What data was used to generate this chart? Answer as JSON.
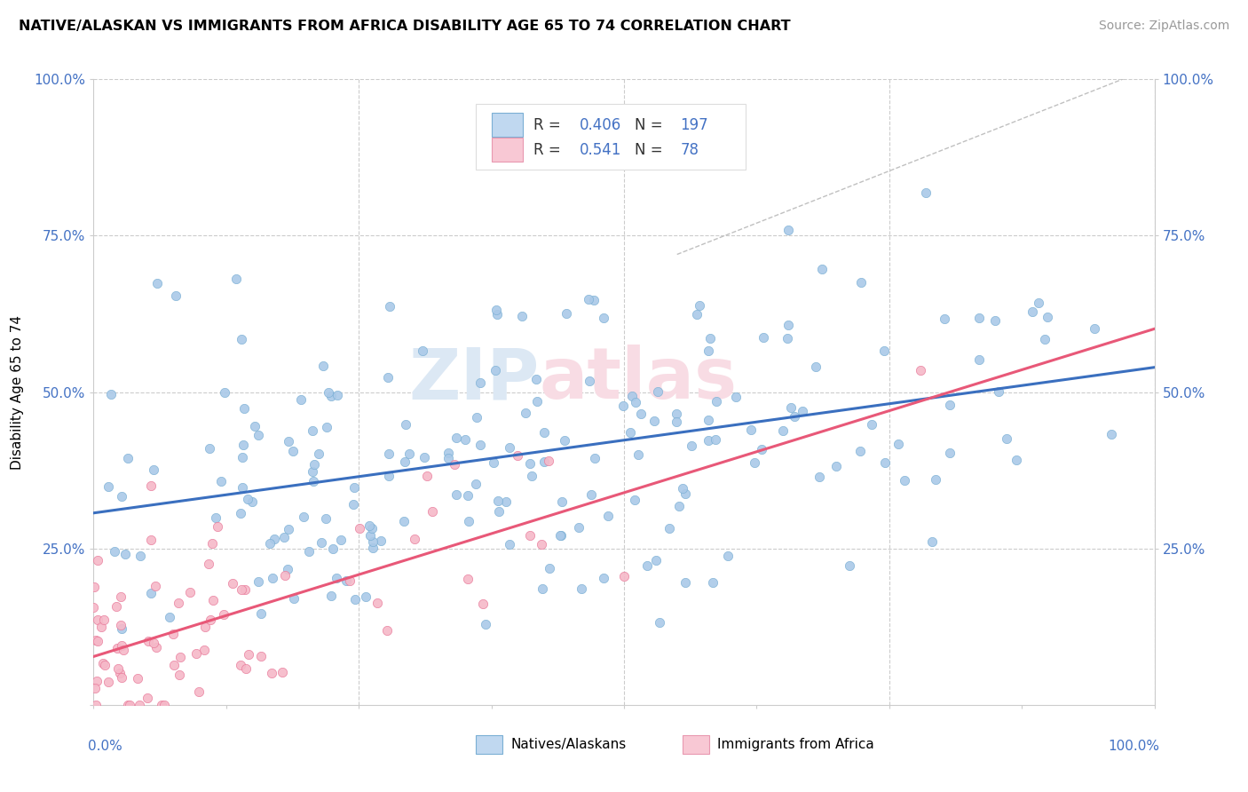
{
  "title": "NATIVE/ALASKAN VS IMMIGRANTS FROM AFRICA DISABILITY AGE 65 TO 74 CORRELATION CHART",
  "source": "Source: ZipAtlas.com",
  "ylabel": "Disability Age 65 to 74",
  "legend_label1": "Natives/Alaskans",
  "legend_label2": "Immigrants from Africa",
  "R1": 0.406,
  "N1": 197,
  "R2": 0.541,
  "N2": 78,
  "dot_color_blue": "#aac9e8",
  "dot_edge_blue": "#7aafd4",
  "dot_color_pink": "#f5b8c8",
  "dot_edge_pink": "#e87898",
  "line_color_blue": "#3a6fbf",
  "line_color_pink": "#e85878",
  "legend_fill_blue": "#c0d8f0",
  "legend_fill_pink": "#f8c8d4",
  "legend_edge_blue": "#7aafd4",
  "legend_edge_pink": "#e898b0",
  "tick_color": "#4472c4",
  "grid_color": "#cccccc",
  "watermark_color": "#dce8f4",
  "watermark_pink": "#f8dce4",
  "xlim": [
    0.0,
    1.0
  ],
  "ylim": [
    0.0,
    1.0
  ],
  "blue_seed": 42,
  "pink_seed": 7
}
